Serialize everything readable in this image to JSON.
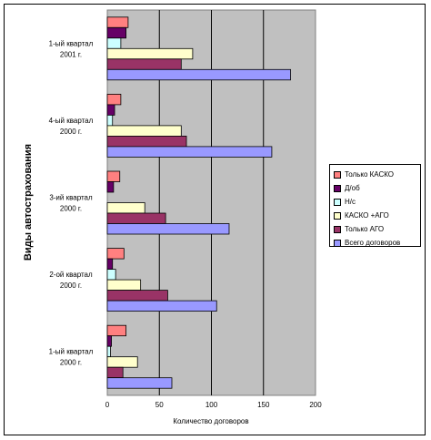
{
  "chart_data": {
    "type": "bar",
    "orientation": "horizontal",
    "xlabel": "Количество договоров",
    "ylabel": "Виды автострахования",
    "xlim": [
      0,
      200
    ],
    "xticks": [
      "0",
      "50",
      "100",
      "150",
      "200"
    ],
    "grid": true,
    "legend_position": "right",
    "categories": [
      "1-ый квартал 2001 г.",
      "4-ый квартал 2000 г.",
      "3-ий квартал 2000 г.",
      "2-ой квартал 2000 г.",
      "1-ый квартал 2000 г."
    ],
    "series": [
      {
        "name": "Только КАСКО",
        "color": "#FF8080",
        "values": [
          20,
          13,
          12,
          16,
          18
        ]
      },
      {
        "name": "Д/об",
        "color": "#660066",
        "values": [
          18,
          7,
          6,
          5,
          4
        ]
      },
      {
        "name": "Н/с",
        "color": "#CCFFFF",
        "values": [
          13,
          5,
          0,
          8,
          3
        ]
      },
      {
        "name": "КАСКО +АГО",
        "color": "#FFFFCC",
        "values": [
          82,
          71,
          36,
          32,
          29
        ]
      },
      {
        "name": "Только АГО",
        "color": "#993366",
        "values": [
          71,
          76,
          56,
          58,
          15
        ]
      },
      {
        "name": "Всего договоров",
        "color": "#9999FF",
        "values": [
          176,
          158,
          117,
          105,
          62
        ]
      }
    ]
  }
}
